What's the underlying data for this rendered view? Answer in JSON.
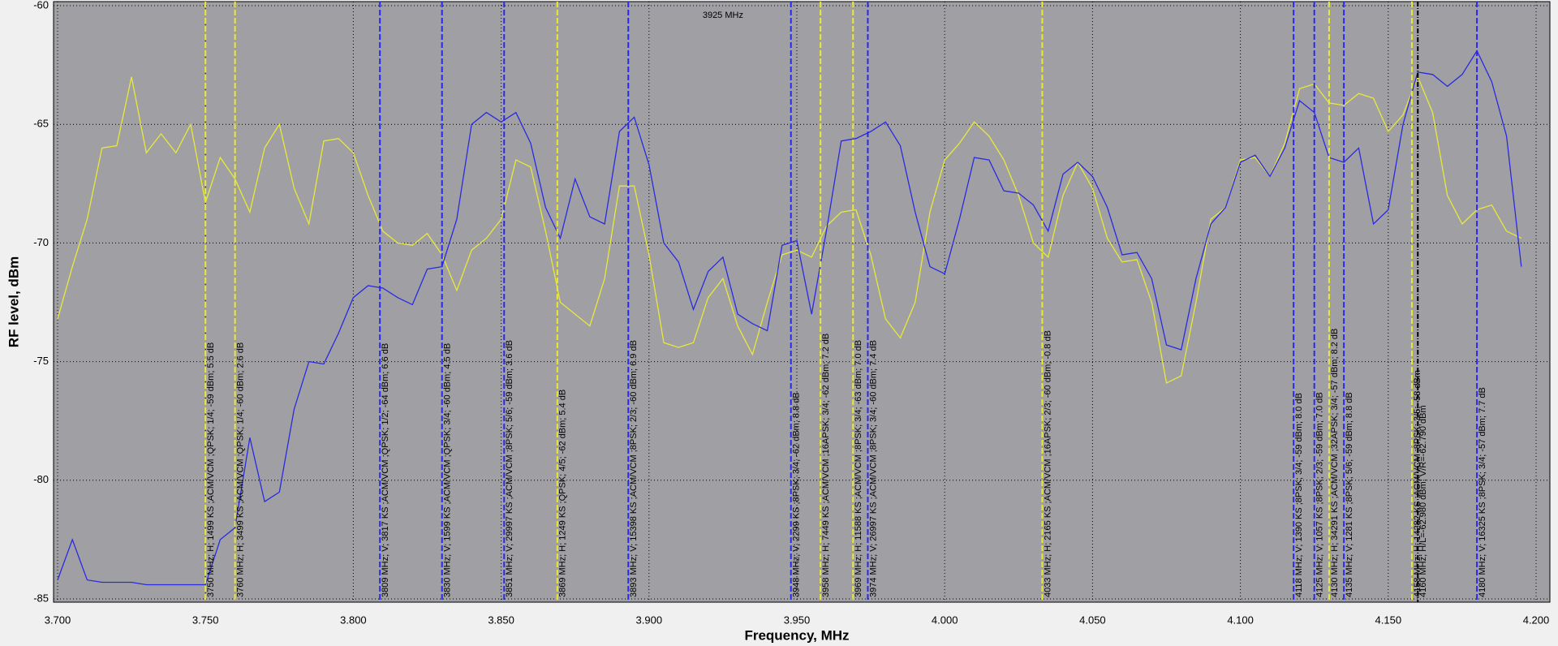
{
  "chart_data": {
    "type": "line",
    "xlabel": "Frequency, MHz",
    "ylabel": "RF level, dBm",
    "xlim": [
      3.7,
      4.2
    ],
    "ylim": [
      -85,
      -60
    ],
    "xticks": [
      {
        "value": 3.7,
        "label": "3.700"
      },
      {
        "value": 3.75,
        "label": "3.750"
      },
      {
        "value": 3.8,
        "label": "3.800"
      },
      {
        "value": 3.85,
        "label": "3.850"
      },
      {
        "value": 3.9,
        "label": "3.900"
      },
      {
        "value": 3.95,
        "label": "3.950"
      },
      {
        "value": 4.0,
        "label": "4.000"
      },
      {
        "value": 4.05,
        "label": "4.050"
      },
      {
        "value": 4.1,
        "label": "4.100"
      },
      {
        "value": 4.15,
        "label": "4.150"
      },
      {
        "value": 4.2,
        "label": "4.200"
      }
    ],
    "yticks": [
      -85,
      -80,
      -75,
      -70,
      -65,
      -60
    ],
    "grid": true,
    "x": [
      3.7,
      3.705,
      3.71,
      3.715,
      3.72,
      3.725,
      3.73,
      3.735,
      3.74,
      3.745,
      3.75,
      3.755,
      3.76,
      3.765,
      3.77,
      3.775,
      3.78,
      3.785,
      3.79,
      3.795,
      3.8,
      3.805,
      3.81,
      3.815,
      3.82,
      3.825,
      3.83,
      3.835,
      3.84,
      3.845,
      3.85,
      3.855,
      3.86,
      3.865,
      3.87,
      3.875,
      3.88,
      3.885,
      3.89,
      3.895,
      3.9,
      3.905,
      3.91,
      3.915,
      3.92,
      3.925,
      3.93,
      3.935,
      3.94,
      3.945,
      3.95,
      3.955,
      3.96,
      3.965,
      3.97,
      3.975,
      3.98,
      3.985,
      3.99,
      3.995,
      4.0,
      4.005,
      4.01,
      4.015,
      4.02,
      4.025,
      4.03,
      4.035,
      4.04,
      4.045,
      4.05,
      4.055,
      4.06,
      4.065,
      4.07,
      4.075,
      4.08,
      4.085,
      4.09,
      4.095,
      4.1,
      4.105,
      4.11,
      4.115,
      4.12,
      4.125,
      4.13,
      4.135,
      4.14,
      4.145,
      4.15,
      4.155,
      4.16,
      4.165,
      4.17,
      4.175,
      4.18,
      4.185,
      4.19,
      4.195
    ],
    "series": [
      {
        "color": "#e8e83a",
        "values": [
          -73.2,
          -71,
          -69,
          -66,
          -65.9,
          -63,
          -66.2,
          -65.4,
          -66.2,
          -65,
          -68.3,
          -66.4,
          -67.3,
          -68.7,
          -66,
          -65,
          -67.7,
          -69.2,
          -65.7,
          -65.6,
          -66.2,
          -68,
          -69.5,
          -70,
          -70.1,
          -69.6,
          -70.5,
          -72,
          -70.3,
          -69.8,
          -69,
          -66.5,
          -66.8,
          -69.5,
          -72.5,
          -73,
          -73.5,
          -71.5,
          -67.6,
          -67.6,
          -70.5,
          -74.2,
          -74.4,
          -74.2,
          -72.3,
          -71.5,
          -73.5,
          -74.7,
          -72.5,
          -70.5,
          -70.3,
          -70.6,
          -69.3,
          -68.7,
          -68.6,
          -70.5,
          -73.2,
          -74,
          -72.5,
          -68.7,
          -66.5,
          -65.8,
          -64.9,
          -65.5,
          -66.5,
          -68,
          -70,
          -70.6,
          -68,
          -66.6,
          -67.7,
          -69.8,
          -70.8,
          -70.7,
          -72.5,
          -75.9,
          -75.6,
          -72.5,
          -69,
          -68.5,
          -66.5,
          -66.4,
          -67.2,
          -65.8,
          -63.5,
          -63.3,
          -64.1,
          -64.2,
          -63.7,
          -63.9,
          -65.3,
          -64.6,
          -63,
          -64.5,
          -68,
          -69.2,
          -68.6,
          -68.4,
          -69.5,
          -69.8
        ]
      },
      {
        "color": "#2a2ae0",
        "values": [
          -84.2,
          -82.5,
          -84.2,
          -84.3,
          -84.3,
          -84.3,
          -84.4,
          -84.4,
          -84.4,
          -84.4,
          -84.4,
          -82.5,
          -82,
          -78.2,
          -80.9,
          -80.5,
          -77,
          -75,
          -75.1,
          -73.8,
          -72.3,
          -71.8,
          -71.9,
          -72.3,
          -72.6,
          -71.1,
          -71,
          -69,
          -65,
          -64.5,
          -64.9,
          -64.5,
          -65.8,
          -68.5,
          -69.8,
          -67.3,
          -68.9,
          -69.2,
          -65.3,
          -64.7,
          -66.7,
          -70,
          -70.8,
          -72.8,
          -71.2,
          -70.6,
          -73,
          -73.4,
          -73.7,
          -70.1,
          -69.9,
          -73,
          -69.5,
          -65.7,
          -65.6,
          -65.3,
          -64.9,
          -65.9,
          -68.7,
          -71,
          -71.3,
          -69,
          -66.4,
          -66.5,
          -67.8,
          -67.9,
          -68.4,
          -69.5,
          -67.1,
          -66.6,
          -67.2,
          -68.5,
          -70.5,
          -70.4,
          -71.5,
          -74.3,
          -74.5,
          -71.5,
          -69.2,
          -68.5,
          -66.6,
          -66.3,
          -67.2,
          -66,
          -64,
          -64.5,
          -66.4,
          -66.6,
          -66,
          -69.2,
          -68.6,
          -65,
          -62.8,
          -62.9,
          -63.4,
          -62.9,
          -61.9,
          -63.2,
          -65.5,
          -71
        ]
      }
    ],
    "markers": [
      {
        "x": 3.75,
        "color": "#e8e83a",
        "label": "3750 MHz; H; 1499 KS ;ACM/VCM ;QPSK; 1/4; -59 dBm; 5.5 dB"
      },
      {
        "x": 3.76,
        "color": "#e8e83a",
        "label": "3760 MHz; H; 3499 KS ;ACM/VCM ;QPSK; 1/4; -60 dBm; 2.6 dB"
      },
      {
        "x": 3.809,
        "color": "#2a2ae0",
        "label": "3809 MHz; V; 3817 KS ;ACM/VCM ;QPSK; 1/2; -64 dBm; 6.6 dB"
      },
      {
        "x": 3.83,
        "color": "#2a2ae0",
        "label": "3830 MHz; V; 1599 KS ;ACM/VCM ;QPSK; 3/4; -60 dBm; 4.5 dB"
      },
      {
        "x": 3.851,
        "color": "#2a2ae0",
        "label": "3851 MHz; V; 29997 KS ;ACM/VCM ;8PSK; 5/6; -59 dBm; 3.6 dB"
      },
      {
        "x": 3.869,
        "color": "#e8e83a",
        "label": "3869 MHz; H; 1249 KS ;QPSK; 4/5; -62 dBm; 5.4 dB"
      },
      {
        "x": 3.893,
        "color": "#2a2ae0",
        "label": "3893 MHz; V; 15398 KS ;ACM/VCM ;8PSK; 2/3; -60 dBm; 6.9 dB"
      },
      {
        "x": 3.948,
        "color": "#2a2ae0",
        "label": "3948 MHz; V; 2299 KS ;8PSK; 3/4; -62 dBm; 8.8 dB"
      },
      {
        "x": 3.958,
        "color": "#e8e83a",
        "label": "3958 MHz; H; 7449 KS ;ACM/VCM ;16APSK; 3/4; -62 dBm; 7.2 dB"
      },
      {
        "x": 3.969,
        "color": "#e8e83a",
        "label": "3969 MHz; H; 11588 KS ;ACM/VCM ;8PSK; 3/4; -63 dBm; 7.0 dB"
      },
      {
        "x": 3.974,
        "color": "#2a2ae0",
        "label": "3974 MHz; V; 26997 KS ;ACM/VCM ;8PSK; 3/4; -60 dBm; 7.4 dB"
      },
      {
        "x": 4.033,
        "color": "#e8e83a",
        "label": "4033 MHz; H; 2165 KS ;ACM/VCM ;16APSK; 2/3; -60 dBm; -0.8 dB"
      },
      {
        "x": 4.118,
        "color": "#2a2ae0",
        "label": "4118 MHz; V; 1390 KS ;8PSK; 3/4; -59 dBm; 8.0 dB"
      },
      {
        "x": 4.125,
        "color": "#2a2ae0",
        "label": "4125 MHz; V; 1057 KS ;8PSK; 2/3; -59 dBm; 7.0 dB"
      },
      {
        "x": 4.13,
        "color": "#e8e83a",
        "label": "4130 MHz; H; 34291 KS ;ACM/VCM ;32APSK; 3/4; -57 dBm; 8.2 dB"
      },
      {
        "x": 4.135,
        "color": "#2a2ae0",
        "label": "4135 MHz; V; 1281 KS ;8PSK; 5/6; -59 dBm; 8.8 dB"
      },
      {
        "x": 4.158,
        "color": "#e8e83a",
        "label": "4158 MHz; H; 14282 KS ;ACM/VCM ;8PSK; 3/5; -58 dBm"
      },
      {
        "x": 4.16,
        "color": "#000000",
        "label": "4160 MHz; H/L=-62.980 dBm; V/R=-62.790 dBm"
      },
      {
        "x": 4.18,
        "color": "#2a2ae0",
        "label": "4180 MHz; V; 16325 KS ;8PSK; 3/4; -57 dBm; 7.7 dB"
      }
    ],
    "cursor": {
      "x": 3.925,
      "label": "3925 MHz"
    }
  }
}
